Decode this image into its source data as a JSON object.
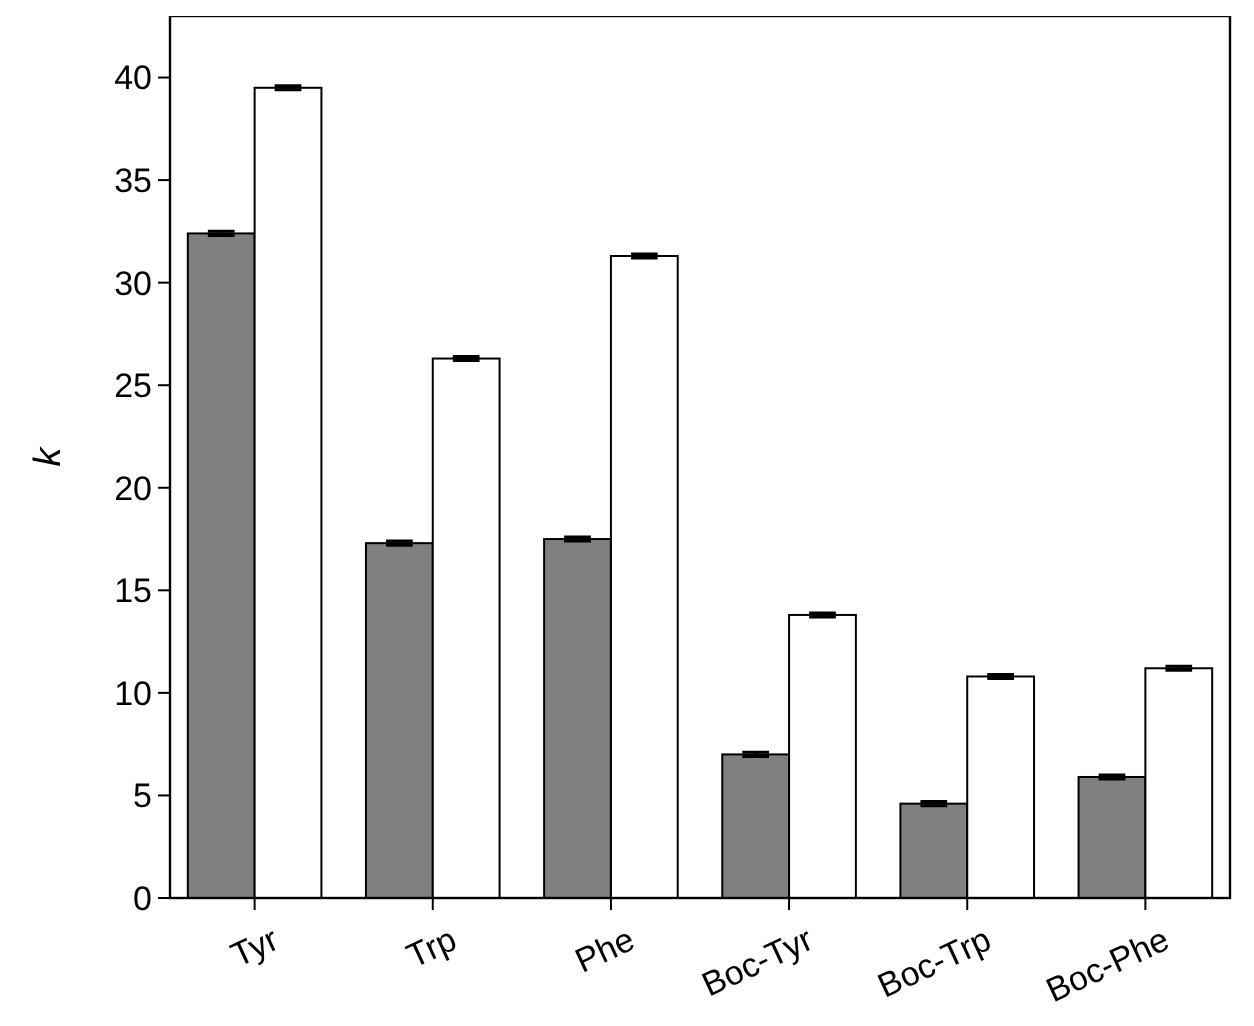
{
  "chart_data": {
    "type": "bar",
    "ylabel": "k",
    "categories": [
      "Tyr",
      "Trp",
      "Phe",
      "Boc-Tyr",
      "Boc-Trp",
      "Boc-Phe"
    ],
    "series": [
      {
        "color": "#808080",
        "values": [
          32.4,
          17.3,
          17.5,
          7.0,
          4.6,
          5.9
        ],
        "errors": [
          0.1,
          0.1,
          0.1,
          0.1,
          0.1,
          0.1
        ]
      },
      {
        "color": "#ffffff",
        "values": [
          39.5,
          26.3,
          31.3,
          13.8,
          10.8,
          11.2
        ],
        "errors": [
          0.1,
          0.1,
          0.1,
          0.1,
          0.1,
          0.1
        ]
      }
    ],
    "ylim": [
      0,
      43
    ],
    "yticks": [
      0,
      5,
      10,
      15,
      20,
      25,
      30,
      35,
      40
    ],
    "grid": false
  }
}
